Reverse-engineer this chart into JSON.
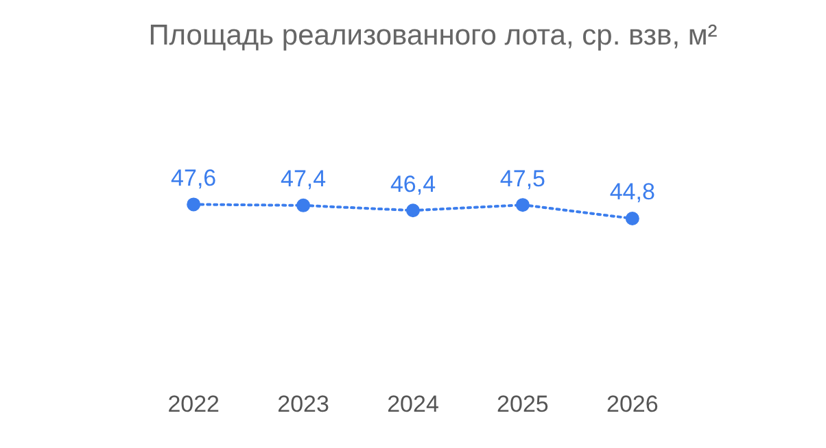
{
  "chart_data": {
    "type": "line",
    "title": "Площадь реализованного лота, ср. взв, м²",
    "categories": [
      "2022",
      "2023",
      "2024",
      "2025",
      "2026"
    ],
    "values": [
      47.6,
      47.4,
      46.4,
      47.5,
      44.8
    ],
    "value_labels": [
      "47,6",
      "47,4",
      "46,4",
      "47,5",
      "44,8"
    ],
    "color": "#3b7ded",
    "tick_labels": "x",
    "grid": false,
    "legend": false,
    "marker": "circle",
    "line_style": "dotted"
  }
}
